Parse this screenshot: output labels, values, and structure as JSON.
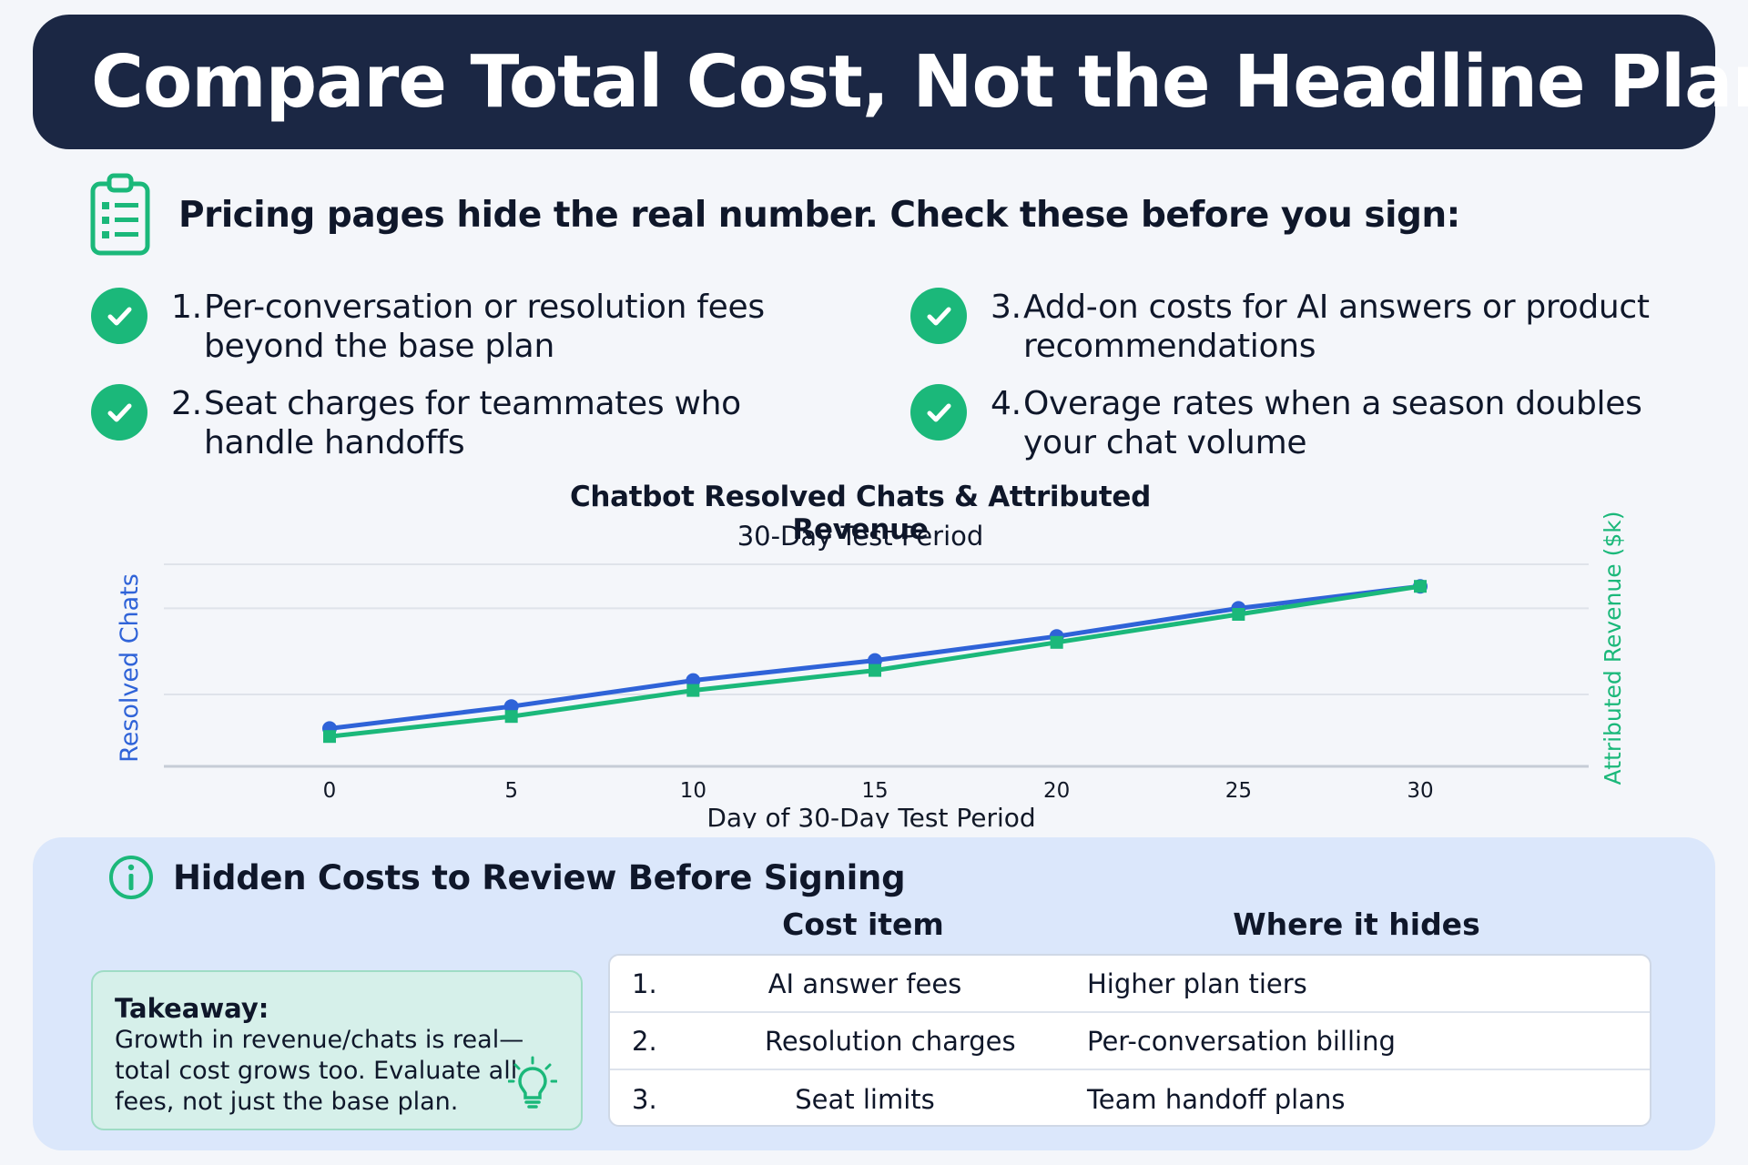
{
  "title": "Compare Total Cost, Not the Headline Plan",
  "intro": {
    "icon": "clipboard-list-icon",
    "text": "Pricing pages hide the real number. Check these before you sign:"
  },
  "checklist": [
    {
      "num": "1.",
      "line1": "Per-conversation or resolution fees",
      "line2": "beyond the base plan"
    },
    {
      "num": "2.",
      "line1": "Seat charges for teammates who",
      "line2": "handle handoffs"
    },
    {
      "num": "3.",
      "line1": "Add-on costs for AI answers or product",
      "line2": "recommendations"
    },
    {
      "num": "4.",
      "line1": "Overage rates when a season doubles",
      "line2": "your chat volume"
    }
  ],
  "chart_data": {
    "type": "line",
    "title": "Chatbot Resolved Chats & Attributed Revenue",
    "subtitle": "30-Day Test Period",
    "xlabel": "Day of 30-Day Test Period",
    "ylabel": "Resolved Chats",
    "ylabel_right": "Attributed Revenue ($k)",
    "x": [
      0,
      5,
      10,
      15,
      20,
      25,
      30
    ],
    "xlim": [
      0,
      30
    ],
    "ylim": [
      0,
      100
    ],
    "grid": true,
    "series": [
      {
        "axis": "left",
        "color": "#2f63d8",
        "values": [
          18,
          29,
          42,
          52,
          64,
          78,
          89
        ]
      },
      {
        "axis": "right",
        "color": "#1bb87a",
        "values": [
          14,
          24,
          37,
          47,
          61,
          75,
          89
        ]
      }
    ]
  },
  "panel": {
    "title": "Hidden Costs to Review Before Signing",
    "col_cost": "Cost item",
    "col_where": "Where it hides",
    "takeaway_title": "Takeaway:",
    "takeaway_body": "Growth in revenue/chats is real—total cost grows too. Evaluate all fees, not just the base plan.",
    "rows": [
      {
        "num": "1.",
        "item": "AI answer fees",
        "where": "Higher plan tiers"
      },
      {
        "num": "2.",
        "item": "Resolution charges",
        "where": "Per-conversation billing"
      },
      {
        "num": "3.",
        "item": "Seat limits",
        "where": "Team handoff plans"
      }
    ]
  },
  "colors": {
    "banner": "#1b2744",
    "accent_green": "#1bb87a",
    "accent_blue": "#2f63d8",
    "panel": "#dbe7fb"
  }
}
